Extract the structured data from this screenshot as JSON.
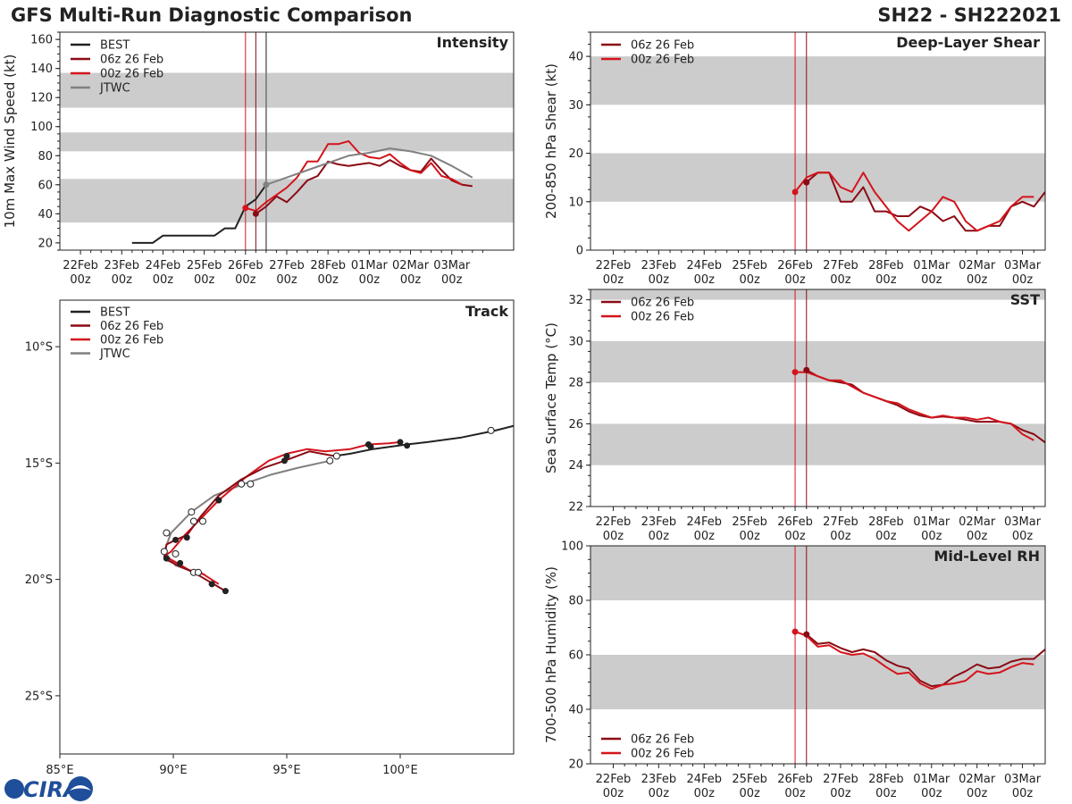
{
  "figure": {
    "title_left": "GFS Multi-Run Diagnostic Comparison",
    "title_right": "SH22 - SH222021",
    "logo_text": "CIRA",
    "colors": {
      "best": "#222222",
      "run06": "#8b0a14",
      "run00": "#d4141c",
      "jtwc": "#808080",
      "band": "#cccccc"
    }
  },
  "chart_data": [
    {
      "id": "intensity",
      "type": "line",
      "title": "Intensity",
      "ylabel": "10m Max Wind Speed (kt)",
      "ylim": [
        15,
        165
      ],
      "yticks": [
        20,
        40,
        60,
        80,
        100,
        120,
        140,
        160
      ],
      "xlim": [
        -0.5,
        10.5
      ],
      "xticks": [
        "22Feb\n00z",
        "23Feb\n00z",
        "24Feb\n00z",
        "25Feb\n00z",
        "26Feb\n00z",
        "27Feb\n00z",
        "28Feb\n00z",
        "01Mar\n00z",
        "02Mar\n00z",
        "03Mar\n00z"
      ],
      "bands": [
        [
          34,
          64
        ],
        [
          83,
          96
        ],
        [
          113,
          137
        ]
      ],
      "vlines": [
        {
          "x": 4.0,
          "series": "run00"
        },
        {
          "x": 4.25,
          "series": "run06"
        },
        {
          "x": 4.5,
          "series": "jtwc"
        }
      ],
      "legend": [
        "BEST",
        "06z 26 Feb",
        "00z 26 Feb",
        "JTWC"
      ],
      "series": [
        {
          "name": "BEST",
          "key": "best",
          "x": [
            1.25,
            1.5,
            1.75,
            2.0,
            2.25,
            2.5,
            2.75,
            3.0,
            3.25,
            3.5,
            3.75,
            4.0,
            4.25,
            4.5
          ],
          "y": [
            20,
            20,
            20,
            25,
            25,
            25,
            25,
            25,
            25,
            30,
            30,
            45,
            50,
            60
          ]
        },
        {
          "name": "06z 26 Feb",
          "key": "run06",
          "x": [
            4.25,
            4.5,
            4.75,
            5.0,
            5.25,
            5.5,
            5.75,
            6.0,
            6.25,
            6.5,
            6.75,
            7.0,
            7.25,
            7.5,
            7.75,
            8.0,
            8.25,
            8.5,
            8.75,
            9.0,
            9.25,
            9.5
          ],
          "y": [
            40,
            45,
            52,
            48,
            55,
            63,
            66,
            76,
            74,
            73,
            74,
            75,
            73,
            77,
            73,
            70,
            69,
            78,
            70,
            63,
            60,
            59
          ]
        },
        {
          "name": "00z 26 Feb",
          "key": "run00",
          "x": [
            4.0,
            4.25,
            4.5,
            4.75,
            5.0,
            5.25,
            5.5,
            5.75,
            6.0,
            6.25,
            6.5,
            6.75,
            7.0,
            7.25,
            7.5,
            7.75,
            8.0,
            8.25,
            8.5,
            8.75,
            9.0,
            9.25
          ],
          "y": [
            44,
            42,
            48,
            53,
            58,
            65,
            76,
            76,
            88,
            88,
            90,
            82,
            79,
            78,
            81,
            75,
            70,
            68,
            75,
            66,
            64,
            60
          ]
        },
        {
          "name": "JTWC",
          "key": "jtwc",
          "x": [
            4.5,
            5.0,
            5.5,
            6.0,
            6.5,
            7.0,
            7.5,
            8.0,
            8.5,
            9.0,
            9.5
          ],
          "y": [
            60,
            65,
            70,
            75,
            80,
            82,
            85,
            83,
            80,
            73,
            65
          ]
        }
      ],
      "markers": [
        {
          "key": "run00",
          "x": 4.0,
          "y": 44
        },
        {
          "key": "run06",
          "x": 4.25,
          "y": 40
        },
        {
          "key": "jtwc",
          "x": 4.5,
          "y": 60
        }
      ]
    },
    {
      "id": "shear",
      "type": "line",
      "title": "Deep-Layer Shear",
      "ylabel": "200-850 hPa Shear (kt)",
      "ylim": [
        0,
        45
      ],
      "yticks": [
        0,
        10,
        20,
        30,
        40
      ],
      "xlim": [
        -0.5,
        9.5
      ],
      "xticks": [
        "22Feb\n00z",
        "23Feb\n00z",
        "24Feb\n00z",
        "25Feb\n00z",
        "26Feb\n00z",
        "27Feb\n00z",
        "28Feb\n00z",
        "01Mar\n00z",
        "02Mar\n00z",
        "03Mar\n00z"
      ],
      "bands": [
        [
          10,
          20
        ],
        [
          30,
          40
        ]
      ],
      "vlines": [
        {
          "x": 4.0,
          "series": "run00"
        },
        {
          "x": 4.25,
          "series": "run06"
        }
      ],
      "legend": [
        "06z 26 Feb",
        "00z 26 Feb"
      ],
      "series": [
        {
          "name": "06z 26 Feb",
          "key": "run06",
          "x": [
            4.25,
            4.5,
            4.75,
            5.0,
            5.25,
            5.5,
            5.75,
            6.0,
            6.25,
            6.5,
            6.75,
            7.0,
            7.25,
            7.5,
            7.75,
            8.0,
            8.25,
            8.5,
            8.75,
            9.0,
            9.25,
            9.5
          ],
          "y": [
            14,
            16,
            16,
            10,
            10,
            13,
            8,
            8,
            7,
            7,
            9,
            8,
            6,
            7,
            4,
            4,
            5,
            5,
            9,
            10,
            9,
            12
          ]
        },
        {
          "name": "00z 26 Feb",
          "key": "run00",
          "x": [
            4.0,
            4.25,
            4.5,
            4.75,
            5.0,
            5.25,
            5.5,
            5.75,
            6.0,
            6.25,
            6.5,
            6.75,
            7.0,
            7.25,
            7.5,
            7.75,
            8.0,
            8.25,
            8.5,
            8.75,
            9.0,
            9.25
          ],
          "y": [
            12,
            15,
            16,
            16,
            13,
            12,
            16,
            12,
            9,
            6,
            4,
            6,
            8,
            11,
            10,
            6,
            4,
            5,
            6,
            9,
            11,
            11
          ]
        }
      ],
      "markers": [
        {
          "key": "run00",
          "x": 4.0,
          "y": 12
        },
        {
          "key": "run06",
          "x": 4.25,
          "y": 14
        }
      ]
    },
    {
      "id": "sst",
      "type": "line",
      "title": "SST",
      "ylabel": "Sea Surface Temp (°C)",
      "ylim": [
        22,
        32.5
      ],
      "yticks": [
        22,
        24,
        26,
        28,
        30,
        32
      ],
      "xlim": [
        -0.5,
        9.5
      ],
      "xticks": [
        "22Feb\n00z",
        "23Feb\n00z",
        "24Feb\n00z",
        "25Feb\n00z",
        "26Feb\n00z",
        "27Feb\n00z",
        "28Feb\n00z",
        "01Mar\n00z",
        "02Mar\n00z",
        "03Mar\n00z"
      ],
      "bands": [
        [
          24,
          26
        ],
        [
          28,
          30
        ],
        [
          32,
          33
        ]
      ],
      "vlines": [
        {
          "x": 4.0,
          "series": "run00"
        },
        {
          "x": 4.25,
          "series": "run06"
        }
      ],
      "legend": [
        "06z 26 Feb",
        "00z 26 Feb"
      ],
      "series": [
        {
          "name": "06z 26 Feb",
          "key": "run06",
          "x": [
            4.25,
            4.5,
            4.75,
            5.0,
            5.25,
            5.5,
            5.75,
            6.0,
            6.25,
            6.5,
            6.75,
            7.0,
            7.25,
            7.5,
            7.75,
            8.0,
            8.25,
            8.5,
            8.75,
            9.0,
            9.25,
            9.5
          ],
          "y": [
            28.6,
            28.3,
            28.1,
            28.0,
            27.9,
            27.5,
            27.3,
            27.1,
            26.9,
            26.6,
            26.4,
            26.3,
            26.35,
            26.3,
            26.2,
            26.1,
            26.1,
            26.1,
            26.0,
            25.7,
            25.5,
            25.1
          ]
        },
        {
          "name": "00z 26 Feb",
          "key": "run00",
          "x": [
            4.0,
            4.25,
            4.5,
            4.75,
            5.0,
            5.25,
            5.5,
            5.75,
            6.0,
            6.25,
            6.5,
            6.75,
            7.0,
            7.25,
            7.5,
            7.75,
            8.0,
            8.25,
            8.5,
            8.75,
            9.0,
            9.25
          ],
          "y": [
            28.5,
            28.5,
            28.3,
            28.1,
            28.1,
            27.8,
            27.5,
            27.3,
            27.1,
            27.0,
            26.7,
            26.5,
            26.3,
            26.4,
            26.3,
            26.3,
            26.2,
            26.3,
            26.1,
            26.0,
            25.5,
            25.2
          ]
        }
      ],
      "markers": [
        {
          "key": "run00",
          "x": 4.0,
          "y": 28.5
        },
        {
          "key": "run06",
          "x": 4.25,
          "y": 28.6
        }
      ]
    },
    {
      "id": "rh",
      "type": "line",
      "title": "Mid-Level RH",
      "ylabel": "700-500 hPa Humidity (%)",
      "ylim": [
        20,
        100
      ],
      "yticks": [
        20,
        40,
        60,
        80,
        100
      ],
      "xlim": [
        -0.5,
        9.5
      ],
      "xticks": [
        "22Feb\n00z",
        "23Feb\n00z",
        "24Feb\n00z",
        "25Feb\n00z",
        "26Feb\n00z",
        "27Feb\n00z",
        "28Feb\n00z",
        "01Mar\n00z",
        "02Mar\n00z",
        "03Mar\n00z"
      ],
      "bands": [
        [
          40,
          60
        ],
        [
          80,
          100
        ]
      ],
      "vlines": [
        {
          "x": 4.0,
          "series": "run00"
        },
        {
          "x": 4.25,
          "series": "run06"
        }
      ],
      "legend": [
        "06z 26 Feb",
        "00z 26 Feb"
      ],
      "legend_pos": "bottom-left",
      "series": [
        {
          "name": "06z 26 Feb",
          "key": "run06",
          "x": [
            4.25,
            4.5,
            4.75,
            5.0,
            5.25,
            5.5,
            5.75,
            6.0,
            6.25,
            6.5,
            6.75,
            7.0,
            7.25,
            7.5,
            7.75,
            8.0,
            8.25,
            8.5,
            8.75,
            9.0,
            9.25,
            9.5
          ],
          "y": [
            67.5,
            64,
            64.5,
            62.5,
            61,
            62,
            61,
            58,
            56,
            55,
            50.5,
            48.5,
            49,
            52,
            54,
            56.5,
            55,
            55.5,
            57.5,
            58.5,
            58.5,
            62
          ]
        },
        {
          "name": "00z 26 Feb",
          "key": "run00",
          "x": [
            4.0,
            4.25,
            4.5,
            4.75,
            5.0,
            5.25,
            5.5,
            5.75,
            6.0,
            6.25,
            6.5,
            6.75,
            7.0,
            7.25,
            7.5,
            7.75,
            8.0,
            8.25,
            8.5,
            8.75,
            9.0,
            9.25
          ],
          "y": [
            68.5,
            67,
            63,
            63.5,
            61,
            60,
            60.5,
            58.5,
            55.5,
            53,
            53.5,
            49.5,
            47.5,
            49,
            49.5,
            50.5,
            54,
            53,
            53.5,
            55.5,
            57,
            56.5
          ]
        }
      ],
      "markers": [
        {
          "key": "run00",
          "x": 4.0,
          "y": 68.5
        },
        {
          "key": "run06",
          "x": 4.25,
          "y": 67.5
        }
      ]
    },
    {
      "id": "track",
      "type": "scatter",
      "title": "Track",
      "xlim": [
        85,
        105
      ],
      "ylim": [
        -27.5,
        -8
      ],
      "xticks": [
        {
          "v": 85,
          "label": "85°E"
        },
        {
          "v": 90,
          "label": "90°E"
        },
        {
          "v": 95,
          "label": "95°E"
        },
        {
          "v": 100,
          "label": "100°E"
        }
      ],
      "yticks": [
        {
          "v": -10,
          "label": "10°S"
        },
        {
          "v": -15,
          "label": "15°S"
        },
        {
          "v": -20,
          "label": "20°S"
        },
        {
          "v": -25,
          "label": "25°S"
        }
      ],
      "legend": [
        "BEST",
        "06z 26 Feb",
        "00z 26 Feb",
        "JTWC"
      ],
      "series": [
        {
          "name": "BEST",
          "key": "best",
          "lon": [
            105.0,
            104.2,
            102.7,
            101.2,
            100.3,
            98.8,
            97.8,
            97.1
          ],
          "lat": [
            -13.4,
            -13.6,
            -13.9,
            -14.1,
            -14.2,
            -14.4,
            -14.6,
            -14.7
          ],
          "open_markers": [
            [
              104.0,
              -13.6
            ],
            [
              97.2,
              -14.7
            ]
          ],
          "filled_markers": [
            [
              100.3,
              -14.25
            ]
          ]
        },
        {
          "name": "06z 26 Feb",
          "key": "run06",
          "lon": [
            97.1,
            96.0,
            94.9,
            94.0,
            93.0,
            92.0,
            91.2,
            90.6,
            90.1,
            89.7,
            89.6,
            90.2,
            90.9,
            91.6,
            92.3
          ],
          "lat": [
            -14.7,
            -14.5,
            -14.9,
            -15.2,
            -15.7,
            -16.4,
            -17.3,
            -18.1,
            -18.3,
            -18.5,
            -19.1,
            -19.4,
            -19.7,
            -20.1,
            -20.5
          ],
          "filled_markers": [
            [
              98.7,
              -14.3
            ],
            [
              94.9,
              -14.9
            ],
            [
              92.0,
              -16.6
            ],
            [
              90.6,
              -18.2
            ],
            [
              90.1,
              -18.3
            ],
            [
              89.7,
              -19.1
            ],
            [
              90.3,
              -19.3
            ],
            [
              91.7,
              -20.2
            ],
            [
              92.3,
              -20.5
            ]
          ]
        },
        {
          "name": "00z 26 Feb",
          "key": "run00",
          "lon": [
            100.0,
            99.5,
            98.6,
            97.8,
            96.7,
            95.9,
            95.0,
            94.2,
            93.2,
            92.0,
            91.2,
            90.5,
            89.9,
            89.6,
            90.0,
            90.7,
            91.2,
            92.0
          ],
          "lat": [
            -14.1,
            -14.15,
            -14.2,
            -14.4,
            -14.5,
            -14.4,
            -14.6,
            -14.9,
            -15.6,
            -16.6,
            -17.4,
            -18.1,
            -18.8,
            -19.0,
            -19.2,
            -19.6,
            -19.7,
            -20.2
          ],
          "filled_markers": [
            [
              100.0,
              -14.1
            ],
            [
              98.6,
              -14.2
            ],
            [
              95.0,
              -14.7
            ],
            [
              92.0,
              -16.6
            ],
            [
              91.7,
              -20.2
            ]
          ]
        },
        {
          "name": "JTWC",
          "key": "jtwc",
          "lon": [
            96.9,
            95.5,
            94.3,
            93.1,
            91.8,
            90.8,
            89.9,
            89.6,
            90.1,
            91.0,
            91.4
          ],
          "lat": [
            -14.9,
            -15.2,
            -15.5,
            -15.9,
            -16.4,
            -17.1,
            -18.0,
            -18.8,
            -19.4,
            -19.7,
            -19.8
          ],
          "open_markers": [
            [
              96.9,
              -14.9
            ],
            [
              93.4,
              -15.9
            ],
            [
              93.0,
              -15.9
            ],
            [
              91.3,
              -17.5
            ],
            [
              90.9,
              -17.5
            ],
            [
              90.8,
              -17.1
            ],
            [
              89.7,
              -18.0
            ],
            [
              90.1,
              -18.9
            ],
            [
              89.6,
              -18.8
            ],
            [
              90.9,
              -19.7
            ],
            [
              91.1,
              -19.7
            ]
          ]
        }
      ]
    }
  ]
}
